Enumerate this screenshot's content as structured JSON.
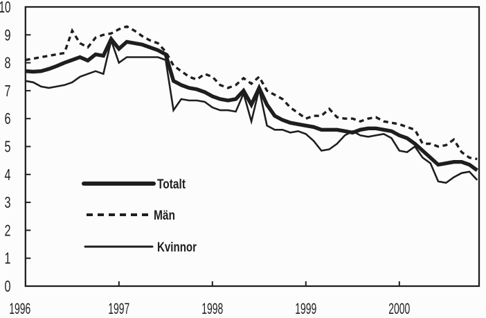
{
  "chart_data": {
    "type": "line",
    "title": "",
    "xlabel": "",
    "ylabel": "",
    "x_interval": "monthly",
    "x_start": "1996-01",
    "x_end": "2000-11",
    "n_points": 59,
    "x_tick_labels": [
      "1996",
      "1997",
      "1998",
      "1999",
      "2000"
    ],
    "x_tick_month_index": [
      0,
      12,
      24,
      36,
      48
    ],
    "ylim": [
      0,
      10
    ],
    "y_tick_labels": [
      "0",
      "1",
      "2",
      "3",
      "4",
      "5",
      "6",
      "7",
      "8",
      "9",
      "10"
    ],
    "grid": false,
    "legend_position": "inside-lower-left",
    "ink_color": "#1e1e1e",
    "background_color": "#fcfcfc",
    "series": [
      {
        "name": "Totalt",
        "line": "solid-thick",
        "values": [
          7.7,
          7.68,
          7.7,
          7.78,
          7.88,
          8.0,
          8.1,
          8.2,
          8.08,
          8.3,
          8.25,
          8.85,
          8.5,
          8.75,
          8.7,
          8.65,
          8.55,
          8.45,
          8.3,
          7.35,
          7.2,
          7.1,
          7.05,
          6.95,
          6.8,
          6.7,
          6.65,
          6.7,
          7.0,
          6.5,
          7.1,
          6.5,
          6.1,
          5.95,
          5.85,
          5.8,
          5.75,
          5.7,
          5.6,
          5.6,
          5.6,
          5.55,
          5.5,
          5.6,
          5.65,
          5.65,
          5.6,
          5.55,
          5.4,
          5.3,
          5.1,
          4.85,
          4.6,
          4.35,
          4.4,
          4.45,
          4.45,
          4.35,
          4.15
        ]
      },
      {
        "name": "Män",
        "line": "dashed",
        "values": [
          8.1,
          8.15,
          8.2,
          8.25,
          8.3,
          8.35,
          9.15,
          8.7,
          8.55,
          8.9,
          9.0,
          9.05,
          9.2,
          9.3,
          9.15,
          8.95,
          8.8,
          8.7,
          8.4,
          7.9,
          7.7,
          7.5,
          7.4,
          7.6,
          7.5,
          7.2,
          7.1,
          7.2,
          7.45,
          7.25,
          7.5,
          7.0,
          6.85,
          6.7,
          6.4,
          6.2,
          6.0,
          6.1,
          6.1,
          6.35,
          6.05,
          6.0,
          6.0,
          5.9,
          6.0,
          6.05,
          5.9,
          5.85,
          5.8,
          5.7,
          5.6,
          5.1,
          5.1,
          5.0,
          5.05,
          5.25,
          4.8,
          4.6,
          4.55
        ]
      },
      {
        "name": "Kvinnor",
        "line": "solid-thin",
        "values": [
          7.35,
          7.3,
          7.15,
          7.1,
          7.15,
          7.2,
          7.3,
          7.5,
          7.6,
          7.7,
          7.6,
          8.8,
          8.0,
          8.2,
          8.2,
          8.2,
          8.2,
          8.2,
          8.1,
          6.3,
          6.7,
          6.65,
          6.65,
          6.6,
          6.4,
          6.3,
          6.3,
          6.25,
          6.9,
          5.9,
          7.05,
          5.75,
          5.6,
          5.6,
          5.5,
          5.55,
          5.45,
          5.2,
          4.85,
          4.9,
          5.1,
          5.4,
          5.55,
          5.4,
          5.35,
          5.4,
          5.45,
          5.3,
          4.85,
          4.8,
          5.0,
          4.6,
          4.4,
          3.75,
          3.7,
          3.9,
          4.05,
          4.1,
          3.8
        ]
      }
    ]
  }
}
